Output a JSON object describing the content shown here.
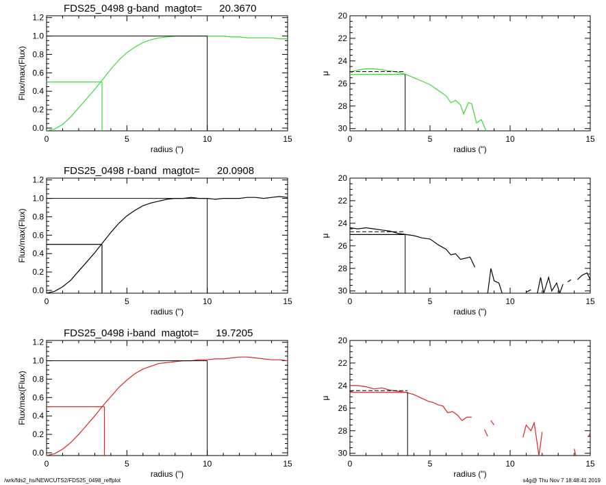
{
  "footer": {
    "path": "/wrk/fds2_hs/NEWCUTS2/FDS25_0498_reffplot",
    "stamp": "s4g@  Thu Nov  7 18:48:41 2019"
  },
  "chart_data": [
    {
      "type": "line",
      "title": "FDS25_0498 g-band  magtot=      20.3670",
      "xlabel": "radius (\")",
      "ylabel": "Flux/max(Flux)",
      "xlim": [
        0,
        15
      ],
      "ylim": [
        -0.03,
        1.22
      ],
      "yticks": [
        0.0,
        0.2,
        0.4,
        0.6,
        0.8,
        1.0,
        1.2
      ],
      "xticks": [
        0,
        5,
        10,
        15
      ],
      "series_color": "#33dd33",
      "x": [
        0,
        0.5,
        1,
        1.5,
        2,
        2.5,
        3,
        3.5,
        4,
        4.5,
        5,
        5.5,
        6,
        6.5,
        7,
        7.5,
        8,
        8.5,
        9,
        9.5,
        10,
        10.5,
        11,
        11.5,
        12,
        12.5,
        13,
        13.5,
        14,
        14.5,
        15
      ],
      "y": [
        -0.03,
        -0.01,
        0.04,
        0.12,
        0.22,
        0.32,
        0.42,
        0.53,
        0.64,
        0.74,
        0.82,
        0.88,
        0.93,
        0.96,
        0.98,
        0.99,
        1.0,
        1.0,
        1.0,
        1.0,
        1.0,
        1.0,
        1.0,
        0.99,
        0.99,
        0.98,
        0.98,
        0.98,
        0.98,
        0.97,
        0.97
      ],
      "reff": 3.45,
      "half_level": 0.5,
      "rmax": 10.0
    },
    {
      "type": "line",
      "xlabel": "radius (\")",
      "ylabel": "μ",
      "xlim": [
        0,
        15
      ],
      "ylim": [
        30.2,
        20
      ],
      "yticks": [
        20,
        22,
        24,
        26,
        28,
        30
      ],
      "xticks": [
        0,
        5,
        10,
        15
      ],
      "series_color": "#33dd33",
      "segments": [
        {
          "x": [
            0,
            0.5,
            1,
            1.5,
            2,
            2.5,
            3,
            3.5,
            4,
            4.5,
            5,
            5.5,
            6,
            6.3,
            6.6,
            6.9,
            7.1,
            7.4,
            7.6,
            7.9,
            8.2,
            8.5
          ],
          "y": [
            25.0,
            24.8,
            24.7,
            24.7,
            24.8,
            24.9,
            25.0,
            25.2,
            25.5,
            25.8,
            26.1,
            26.6,
            27.1,
            27.7,
            27.5,
            27.9,
            28.7,
            27.7,
            27.8,
            29.5,
            29.2,
            30.2
          ]
        }
      ],
      "mean_line": {
        "x": [
          0,
          3.45
        ],
        "y": [
          24.95,
          24.95
        ]
      },
      "reff": 3.45,
      "mu_eff": 25.2
    },
    {
      "type": "line",
      "title": "FDS25_0498 r-band  magtot=      20.0908",
      "xlabel": "radius (\")",
      "ylabel": "Flux/max(Flux)",
      "xlim": [
        0,
        15
      ],
      "ylim": [
        -0.03,
        1.22
      ],
      "yticks": [
        0.0,
        0.2,
        0.4,
        0.6,
        0.8,
        1.0,
        1.2
      ],
      "xticks": [
        0,
        5,
        10,
        15
      ],
      "series_color": "#000000",
      "x": [
        0,
        0.5,
        1,
        1.5,
        2,
        2.5,
        3,
        3.5,
        4,
        4.5,
        5,
        5.5,
        6,
        6.5,
        7,
        7.5,
        8,
        8.5,
        9,
        9.5,
        10,
        10.5,
        11,
        11.5,
        12,
        12.5,
        13,
        13.5,
        14,
        14.5,
        15
      ],
      "y": [
        -0.03,
        -0.01,
        0.04,
        0.11,
        0.21,
        0.31,
        0.41,
        0.52,
        0.63,
        0.73,
        0.81,
        0.87,
        0.92,
        0.95,
        0.97,
        0.99,
        1.0,
        1.0,
        1.01,
        1.0,
        1.0,
        0.99,
        1.0,
        1.0,
        1.0,
        1.01,
        1.01,
        1.0,
        1.01,
        1.02,
        1.01
      ],
      "reff": 3.45,
      "half_level": 0.5,
      "rmax": 10.0
    },
    {
      "type": "line",
      "xlabel": "radius (\")",
      "ylabel": "μ",
      "xlim": [
        0,
        15
      ],
      "ylim": [
        30.2,
        20
      ],
      "yticks": [
        20,
        22,
        24,
        26,
        28,
        30
      ],
      "xticks": [
        0,
        5,
        10,
        15
      ],
      "series_color": "#000000",
      "segments": [
        {
          "x": [
            0,
            0.5,
            1,
            1.5,
            2,
            2.5,
            3,
            3.5,
            4,
            4.5,
            5,
            5.5,
            6,
            6.3,
            6.6,
            6.9,
            7.2,
            7.5,
            7.8
          ],
          "y": [
            24.4,
            24.5,
            24.4,
            24.5,
            24.6,
            24.7,
            24.9,
            25.0,
            25.1,
            25.3,
            25.4,
            25.9,
            26.3,
            26.8,
            26.7,
            27.2,
            27.1,
            27.0,
            27.9
          ]
        },
        {
          "x": [
            8.6,
            8.8,
            9.0,
            9.3,
            9.5
          ],
          "y": [
            30.2,
            28.0,
            29.1,
            29.3,
            30.2
          ]
        },
        {
          "x": [
            11.0,
            11.3
          ],
          "y": [
            30.1,
            29.9
          ]
        },
        {
          "x": [
            11.7,
            11.9,
            12.1,
            12.4,
            12.6,
            12.9,
            13.1,
            13.3
          ],
          "y": [
            30.2,
            28.8,
            30.2,
            28.8,
            30.0,
            29.3,
            30.2,
            29.4
          ]
        },
        {
          "x": [
            13.6,
            13.8
          ],
          "y": [
            29.2,
            29.0
          ]
        },
        {
          "x": [
            14.2,
            14.5,
            14.8,
            15.0
          ],
          "y": [
            29.0,
            28.6,
            28.4,
            29.0
          ]
        }
      ],
      "mean_line": {
        "x": [
          0,
          3.45
        ],
        "y": [
          24.75,
          24.75
        ]
      },
      "reff": 3.45,
      "mu_eff": 25.0
    },
    {
      "type": "line",
      "title": "FDS25_0498 i-band  magtot=      19.7205",
      "xlabel": "radius (\")",
      "ylabel": "Flux/max(Flux)",
      "xlim": [
        0,
        15
      ],
      "ylim": [
        -0.03,
        1.22
      ],
      "yticks": [
        0.0,
        0.2,
        0.4,
        0.6,
        0.8,
        1.0,
        1.2
      ],
      "xticks": [
        0,
        5,
        10,
        15
      ],
      "series_color": "#dd2222",
      "x": [
        0,
        0.5,
        1,
        1.5,
        2,
        2.5,
        3,
        3.5,
        4,
        4.5,
        5,
        5.5,
        6,
        6.5,
        7,
        7.5,
        8,
        8.5,
        9,
        9.5,
        10,
        10.5,
        11,
        11.5,
        12,
        12.5,
        13,
        13.5,
        14,
        14.5,
        15
      ],
      "y": [
        -0.03,
        -0.01,
        0.04,
        0.11,
        0.2,
        0.3,
        0.4,
        0.51,
        0.61,
        0.71,
        0.79,
        0.86,
        0.91,
        0.94,
        0.97,
        0.98,
        0.99,
        1.0,
        1.0,
        1.01,
        1.01,
        1.02,
        1.02,
        1.03,
        1.04,
        1.04,
        1.03,
        1.02,
        1.01,
        1.01,
        1.0
      ],
      "reff": 3.6,
      "half_level": 0.5,
      "rmax": 10.0
    },
    {
      "type": "line",
      "xlabel": "radius (\")",
      "ylabel": "μ",
      "xlim": [
        0,
        15
      ],
      "ylim": [
        30.2,
        20
      ],
      "yticks": [
        20,
        22,
        24,
        26,
        28,
        30
      ],
      "xticks": [
        0,
        5,
        10,
        15
      ],
      "series_color": "#dd2222",
      "segments": [
        {
          "x": [
            0,
            0.5,
            1,
            1.5,
            2,
            2.5,
            3,
            3.5,
            4,
            4.3,
            4.6,
            4.9,
            5.2,
            5.5,
            5.8,
            6.1,
            6.4,
            6.7,
            7.0,
            7.3,
            7.6
          ],
          "y": [
            24.0,
            24.0,
            24.1,
            24.3,
            24.2,
            24.4,
            24.5,
            24.6,
            24.8,
            25.0,
            25.2,
            25.4,
            25.5,
            25.7,
            25.8,
            26.4,
            26.3,
            26.6,
            27.1,
            26.8,
            26.8
          ]
        },
        {
          "x": [
            8.4,
            8.6
          ],
          "y": [
            27.9,
            28.5
          ]
        },
        {
          "x": [
            8.8,
            9.0
          ],
          "y": [
            27.1,
            27.5
          ]
        },
        {
          "x": [
            10.8,
            11.0,
            11.3,
            11.5,
            11.8,
            12.0
          ],
          "y": [
            28.6,
            27.5,
            28.0,
            27.3,
            30.2,
            28.1
          ]
        },
        {
          "x": [
            14.0,
            14.1
          ],
          "y": [
            29.6,
            30.2
          ]
        },
        {
          "x": [
            14.9,
            15.0
          ],
          "y": [
            28.5,
            28.2
          ]
        }
      ],
      "mean_line": {
        "x": [
          0,
          3.6
        ],
        "y": [
          24.45,
          24.45
        ]
      },
      "reff": 3.6,
      "mu_eff": 24.6
    }
  ]
}
